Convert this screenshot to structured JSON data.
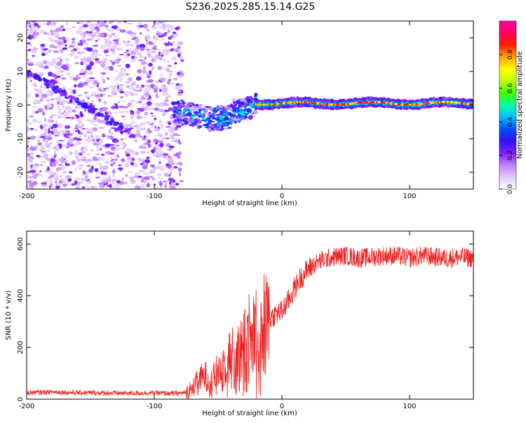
{
  "title": "S236.2025.285.15.14.G25",
  "chart_data": [
    {
      "type": "heatmap",
      "title": "S236.2025.285.15.14.G25",
      "xlabel": "Height of straight line (km)",
      "ylabel": "Frequency (Hz)",
      "xlim": [
        -200,
        150
      ],
      "ylim": [
        -25,
        25
      ],
      "x_ticks": [
        -200,
        -100,
        0,
        100
      ],
      "y_ticks": [
        -20,
        -10,
        0,
        10,
        20
      ],
      "colorbar": {
        "label": "Normalized spectral amplitude",
        "range": [
          0,
          1
        ],
        "ticks": [
          0.0,
          0.2,
          0.4,
          0.6,
          0.8
        ],
        "colors": [
          "#ffffff",
          "#e0c8ff",
          "#c080ff",
          "#8020ff",
          "#3010ff",
          "#0050ff",
          "#00c0ff",
          "#00ffa0",
          "#40ff00",
          "#c0ff00",
          "#ffff00",
          "#ffa000",
          "#ff2000",
          "#ff0060",
          "#ff00a0"
        ]
      },
      "features": [
        {
          "name": "carrier",
          "x_range": [
            -20,
            150
          ],
          "frequency_hz": 0.5,
          "amplitude": 0.85
        },
        {
          "name": "ionospheric-transition",
          "x_range": [
            -85,
            -20
          ],
          "frequency_hz_range": [
            -5,
            2
          ],
          "amplitude": 0.35
        },
        {
          "name": "diagonal-streak",
          "x_start": -200,
          "x_end": -115,
          "freq_start": 10,
          "freq_end": -9,
          "amplitude": 0.25
        },
        {
          "name": "noise-region",
          "x_range": [
            -200,
            -82
          ],
          "amplitude_max": 0.2
        }
      ]
    },
    {
      "type": "line",
      "xlabel": "Height of straight line (km)",
      "ylabel": "SNR (10 * v/v)",
      "xlim": [
        -200,
        150
      ],
      "ylim": [
        0,
        650
      ],
      "x_ticks": [
        -200,
        -100,
        0,
        100
      ],
      "y_ticks": [
        0,
        200,
        400,
        600
      ],
      "series": [
        {
          "name": "SNR",
          "color": "#ee2222",
          "x": [
            -200,
            -180,
            -160,
            -140,
            -120,
            -100,
            -85,
            -75,
            -70,
            -65,
            -60,
            -55,
            -50,
            -45,
            -40,
            -35,
            -30,
            -25,
            -20,
            -15,
            -10,
            -5,
            0,
            5,
            10,
            15,
            20,
            25,
            30,
            40,
            50,
            60,
            70,
            80,
            90,
            100,
            110,
            120,
            130,
            140,
            150
          ],
          "values": [
            25,
            28,
            25,
            24,
            23,
            24,
            22,
            25,
            45,
            75,
            90,
            70,
            110,
            140,
            170,
            160,
            200,
            250,
            270,
            290,
            310,
            330,
            340,
            380,
            430,
            470,
            500,
            520,
            535,
            550,
            555,
            545,
            550,
            555,
            555,
            545,
            555,
            550,
            545,
            550,
            545
          ]
        }
      ]
    }
  ]
}
